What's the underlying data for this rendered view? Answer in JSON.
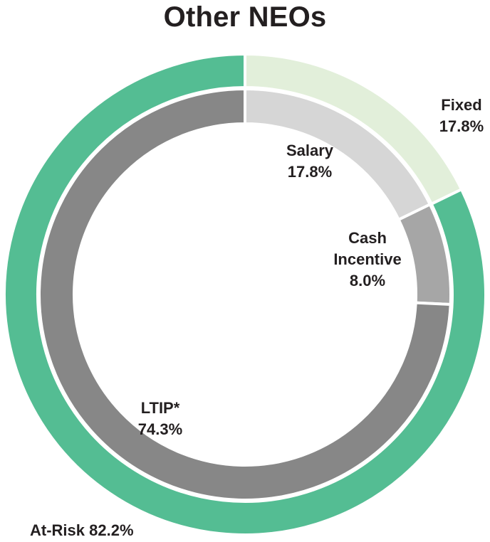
{
  "chart_data": {
    "type": "pie",
    "title": "Other NEOs",
    "subtype": "nested-donut",
    "rings": [
      {
        "name": "outer",
        "slices": [
          {
            "label": "Fixed",
            "value": 17.8,
            "value_text": "17.8%",
            "color": "#e2efda"
          },
          {
            "label": "At-Risk",
            "value": 82.2,
            "value_text": "82.2%",
            "color": "#54bd93"
          }
        ]
      },
      {
        "name": "inner",
        "slices": [
          {
            "label": "Salary",
            "value": 17.8,
            "value_text": "17.8%",
            "color": "#d6d6d6"
          },
          {
            "label": "Cash Incentive",
            "label_lines": [
              "Cash",
              "Incentive"
            ],
            "value": 8.0,
            "value_text": "8.0%",
            "color": "#a6a6a6"
          },
          {
            "label": "LTIP*",
            "value": 74.3,
            "value_text": "74.3%",
            "color": "#878787"
          }
        ]
      }
    ],
    "labels": {
      "fixed": "Fixed 17.8%",
      "at_risk": "At-Risk 82.2%"
    }
  }
}
